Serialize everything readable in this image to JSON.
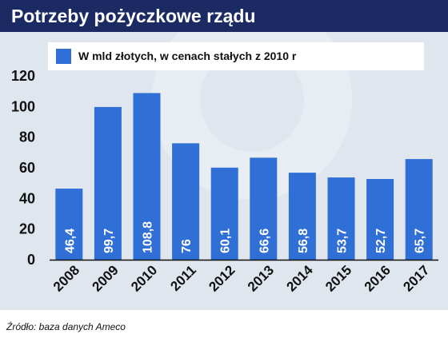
{
  "header": {
    "title": "Potrzeby pożyczkowe rządu"
  },
  "footer": {
    "source": "Źródło: baza danych Ameco"
  },
  "colors": {
    "bar": "#2f6fd6",
    "header": "#1b2a63",
    "panel": "#dfe6ee"
  },
  "chart_data": {
    "type": "bar",
    "title": "Potrzeby pożyczkowe rządu",
    "xlabel": "",
    "ylabel": "",
    "ylim": [
      0,
      120
    ],
    "yticks": [
      "0",
      "20",
      "40",
      "60",
      "80",
      "100",
      "120"
    ],
    "grid": false,
    "legend": "top",
    "categories": [
      "2008",
      "2009",
      "2010",
      "2011",
      "2012",
      "2013",
      "2014",
      "2015",
      "2016",
      "2017"
    ],
    "series": [
      {
        "name": "W mld złotych, w cenach stałych z 2010 r",
        "values": [
          46.4,
          99.7,
          108.8,
          76,
          60.1,
          66.6,
          56.8,
          53.7,
          52.7,
          65.7
        ],
        "labels": [
          "46,4",
          "99,7",
          "108,8",
          "76",
          "60,1",
          "66,6",
          "56,8",
          "53,7",
          "52,7",
          "65,7"
        ]
      }
    ]
  }
}
